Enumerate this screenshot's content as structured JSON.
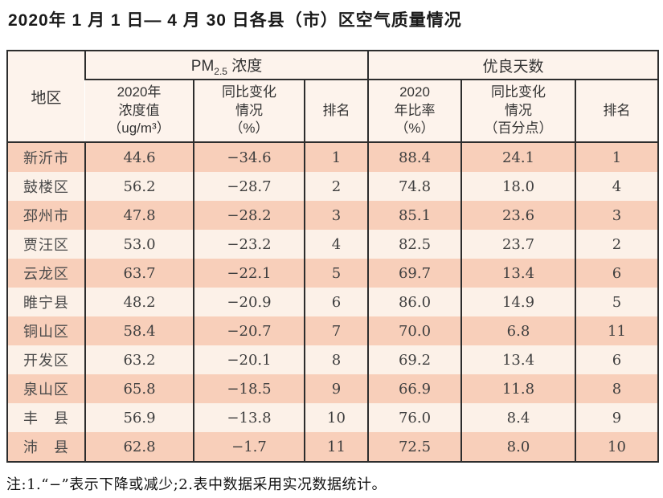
{
  "page": {
    "title": "2020年 1 月 1 日— 4 月 30 日各县（市）区空气质量情况",
    "note": "注:1.“−”表示下降或减少;2.表中数据采用实况数据统计。"
  },
  "colors": {
    "row_odd_bg": "#f8cfba",
    "row_even_bg": "#fcf1e8",
    "header_bg": "#fdf3ec",
    "border": "#2d2d2d",
    "text": "#3f3f3f"
  },
  "table": {
    "region_header": "地区",
    "group_pm": {
      "prefix": "PM",
      "sub": "2.5",
      "suffix": " 浓度"
    },
    "group_good_days": "优良天数",
    "sub_headers": {
      "pm_value": "2020年\n浓度值\n（ug/m³）",
      "pm_change": "同比变化\n情况\n（%）",
      "pm_rank": "排名",
      "gd_ratio": "2020\n年比率\n（%）",
      "gd_change": "同比变化\n情况\n（百分点）",
      "gd_rank": "排名"
    },
    "rows": [
      {
        "region": "新沂市",
        "pm_value": "44.6",
        "pm_change": "−34.6",
        "pm_rank": "1",
        "gd_ratio": "88.4",
        "gd_change": "24.1",
        "gd_rank": "1"
      },
      {
        "region": "鼓楼区",
        "pm_value": "56.2",
        "pm_change": "−28.7",
        "pm_rank": "2",
        "gd_ratio": "74.8",
        "gd_change": "18.0",
        "gd_rank": "4"
      },
      {
        "region": "邳州市",
        "pm_value": "47.8",
        "pm_change": "−28.2",
        "pm_rank": "3",
        "gd_ratio": "85.1",
        "gd_change": "23.6",
        "gd_rank": "3"
      },
      {
        "region": "贾汪区",
        "pm_value": "53.0",
        "pm_change": "−23.2",
        "pm_rank": "4",
        "gd_ratio": "82.5",
        "gd_change": "23.7",
        "gd_rank": "2"
      },
      {
        "region": "云龙区",
        "pm_value": "63.7",
        "pm_change": "−22.1",
        "pm_rank": "5",
        "gd_ratio": "69.7",
        "gd_change": "13.4",
        "gd_rank": "6"
      },
      {
        "region": "睢宁县",
        "pm_value": "48.2",
        "pm_change": "−20.9",
        "pm_rank": "6",
        "gd_ratio": "86.0",
        "gd_change": "14.9",
        "gd_rank": "5"
      },
      {
        "region": "铜山区",
        "pm_value": "58.4",
        "pm_change": "−20.7",
        "pm_rank": "7",
        "gd_ratio": "70.0",
        "gd_change": "6.8",
        "gd_rank": "11"
      },
      {
        "region": "开发区",
        "pm_value": "63.2",
        "pm_change": "−20.1",
        "pm_rank": "8",
        "gd_ratio": "69.2",
        "gd_change": "13.4",
        "gd_rank": "6"
      },
      {
        "region": "泉山区",
        "pm_value": "65.8",
        "pm_change": "−18.5",
        "pm_rank": "9",
        "gd_ratio": "66.9",
        "gd_change": "11.8",
        "gd_rank": "8"
      },
      {
        "region": "丰　县",
        "pm_value": "56.9",
        "pm_change": "−13.8",
        "pm_rank": "10",
        "gd_ratio": "76.0",
        "gd_change": "8.4",
        "gd_rank": "9"
      },
      {
        "region": "沛　县",
        "pm_value": "62.8",
        "pm_change": "−1.7",
        "pm_rank": "11",
        "gd_ratio": "72.5",
        "gd_change": "8.0",
        "gd_rank": "10"
      }
    ]
  }
}
